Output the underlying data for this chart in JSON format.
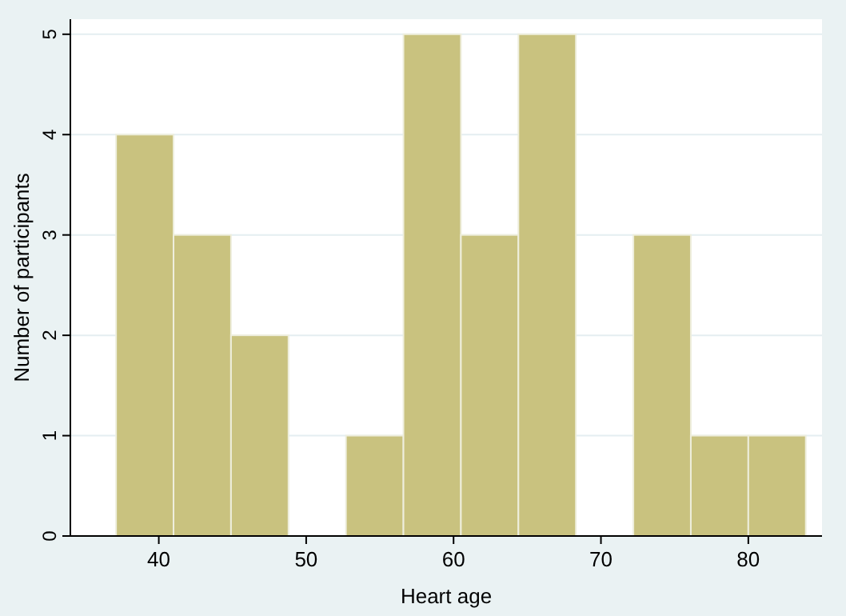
{
  "chart_data": {
    "type": "histogram",
    "xlabel": "Heart age",
    "ylabel": "Number of participants",
    "bins": [
      37.1,
      41.0,
      44.9,
      48.8,
      52.7,
      56.6,
      60.5,
      64.4,
      68.3,
      72.2,
      76.1,
      80.0,
      83.9
    ],
    "values": [
      4,
      3,
      2,
      0,
      1,
      5,
      3,
      5,
      0,
      3,
      1,
      1
    ],
    "color": "#c9c27f",
    "xlim": [
      34,
      85
    ],
    "xticks": [
      40,
      50,
      60,
      70,
      80
    ],
    "ylim": [
      0,
      5.15
    ],
    "yticks": [
      0,
      1,
      2,
      3,
      4,
      5
    ],
    "grid": "y"
  }
}
